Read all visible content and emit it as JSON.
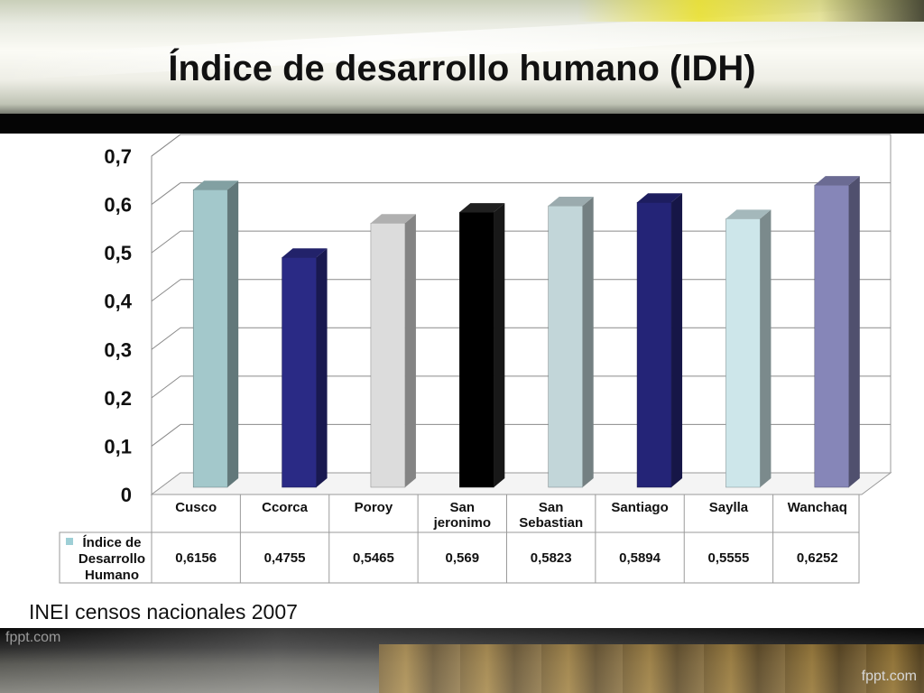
{
  "slide": {
    "title": "Índice de desarrollo humano (IDH)",
    "source": "INEI censos nacionales 2007",
    "watermark_left": "fppt.com",
    "watermark_right": "fppt.com"
  },
  "chart_data": {
    "type": "bar",
    "style": "3d-column",
    "title": "",
    "xlabel": "",
    "ylabel": "",
    "ylim": [
      0,
      0.7
    ],
    "yticks": [
      "0",
      "0,1",
      "0,2",
      "0,3",
      "0,4",
      "0,5",
      "0,6",
      "0,7"
    ],
    "grid": true,
    "categories": [
      "Cusco",
      "Ccorca",
      "Poroy",
      "San jeronimo",
      "San Sebastian",
      "Santiago",
      "Saylla",
      "Wanchaq"
    ],
    "category_lines": [
      [
        "Cusco"
      ],
      [
        "Ccorca"
      ],
      [
        "Poroy"
      ],
      [
        "San",
        "jeronimo"
      ],
      [
        "San",
        "Sebastian"
      ],
      [
        "Santiago"
      ],
      [
        "Saylla"
      ],
      [
        "Wanchaq"
      ]
    ],
    "series": [
      {
        "name": "Índice de Desarrollo Humano",
        "name_lines": [
          "Índice de",
          "Desarrollo",
          "Humano"
        ],
        "values": [
          0.6156,
          0.4755,
          0.5465,
          0.569,
          0.5823,
          0.5894,
          0.5555,
          0.6252
        ],
        "value_labels": [
          "0,6156",
          "0,4755",
          "0,5465",
          "0,569",
          "0,5823",
          "0,5894",
          "0,5555",
          "0,6252"
        ],
        "legend_color": "#9ecfd6"
      }
    ],
    "bar_colors": [
      "#a3c8cb",
      "#2a2a85",
      "#dcdcdc",
      "#000000",
      "#c2d6d9",
      "#242477",
      "#cde6ea",
      "#8686b8"
    ],
    "data_table": true
  }
}
